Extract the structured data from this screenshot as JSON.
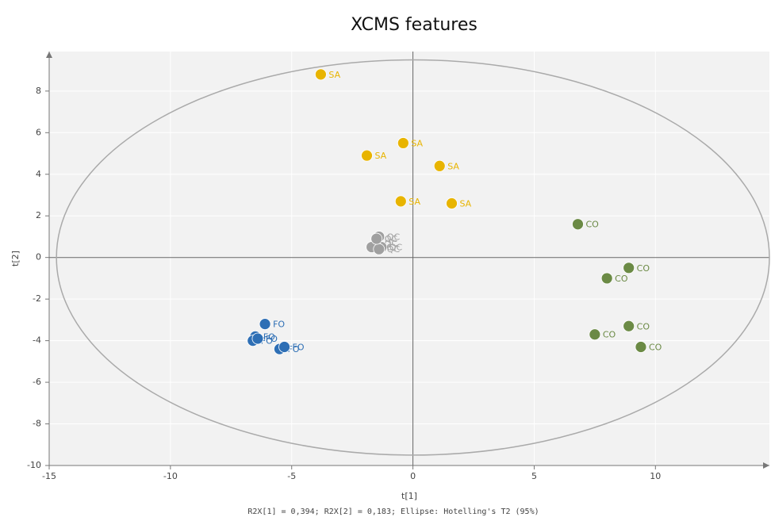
{
  "chart_data": {
    "type": "scatter",
    "title": "XCMS features",
    "x_label": "t[1]",
    "y_label": "t[2]",
    "footnote": "R2X[1] = 0,394; R2X[2] = 0,183; Ellipse: Hotelling's T2 (95%)",
    "xlim": [
      -15,
      14.7
    ],
    "ylim": [
      -10,
      9.9
    ],
    "xticks": [
      -15,
      -10,
      -5,
      0,
      5,
      10
    ],
    "yticks": [
      -10,
      -8,
      -6,
      -4,
      -2,
      0,
      2,
      4,
      6,
      8
    ],
    "grid": true,
    "ellipse": {
      "rx": 14.7,
      "ry": 9.5
    },
    "series": [
      {
        "name": "SA",
        "color": "#e8b400",
        "x": [
          -3.8,
          -0.4,
          -1.9,
          1.1,
          -0.5,
          1.6
        ],
        "values": [
          8.8,
          5.5,
          4.9,
          4.4,
          2.7,
          2.6
        ]
      },
      {
        "name": "QC",
        "color": "#a0a0a0",
        "x": [
          -1.4,
          -1.5,
          -1.3,
          -1.7,
          -1.4,
          -1.5
        ],
        "values": [
          1.0,
          0.7,
          0.5,
          0.5,
          0.4,
          0.9
        ]
      },
      {
        "name": "CO",
        "color": "#6b8a45",
        "x": [
          6.8,
          8.9,
          8.0,
          8.9,
          7.5,
          9.4
        ],
        "values": [
          1.6,
          -0.5,
          -1.0,
          -3.3,
          -3.7,
          -4.3
        ]
      },
      {
        "name": "FO",
        "color": "#2e6fb5",
        "x": [
          -6.1,
          -6.5,
          -6.6,
          -5.5,
          -5.3,
          -6.4
        ],
        "values": [
          -3.2,
          -3.8,
          -4.0,
          -4.4,
          -4.3,
          -3.9
        ]
      }
    ]
  }
}
